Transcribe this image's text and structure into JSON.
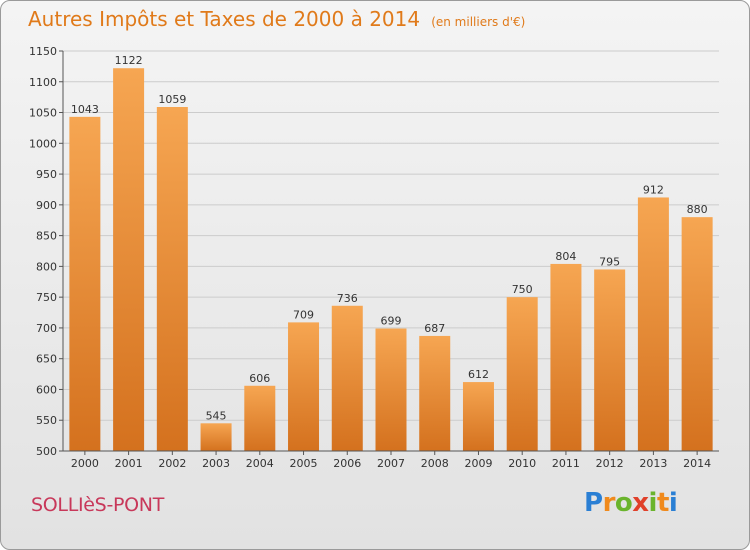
{
  "header": {
    "title": "Autres Impôts et Taxes de 2000 à 2014",
    "subtitle": "(en milliers d'€)"
  },
  "footer": {
    "commune": "SOLLIèS-PONT",
    "logo_letters": [
      "P",
      "r",
      "o",
      "x",
      "i",
      "t",
      "i"
    ],
    "logo_colors": [
      "#2a7fd4",
      "#f08a1c",
      "#6ab42d",
      "#e0402a",
      "#6ab42d",
      "#f08a1c",
      "#2a7fd4"
    ]
  },
  "colors": {
    "bar_light": "#f6a652",
    "bar_dark": "#d4711e",
    "grid": "#cccccc",
    "axis": "#555555"
  },
  "chart_data": {
    "type": "bar",
    "title": "Autres Impôts et Taxes de 2000 à 2014",
    "subtitle": "(en milliers d'€)",
    "categories": [
      "2000",
      "2001",
      "2002",
      "2003",
      "2004",
      "2005",
      "2006",
      "2007",
      "2008",
      "2009",
      "2010",
      "2011",
      "2012",
      "2013",
      "2014"
    ],
    "values": [
      1043,
      1122,
      1059,
      545,
      606,
      709,
      736,
      699,
      687,
      612,
      750,
      804,
      795,
      912,
      880
    ],
    "ylim": [
      500,
      1150
    ],
    "yticks": [
      500,
      550,
      600,
      650,
      700,
      750,
      800,
      850,
      900,
      950,
      1000,
      1050,
      1100,
      1150
    ],
    "grid": true,
    "legend": "none"
  }
}
